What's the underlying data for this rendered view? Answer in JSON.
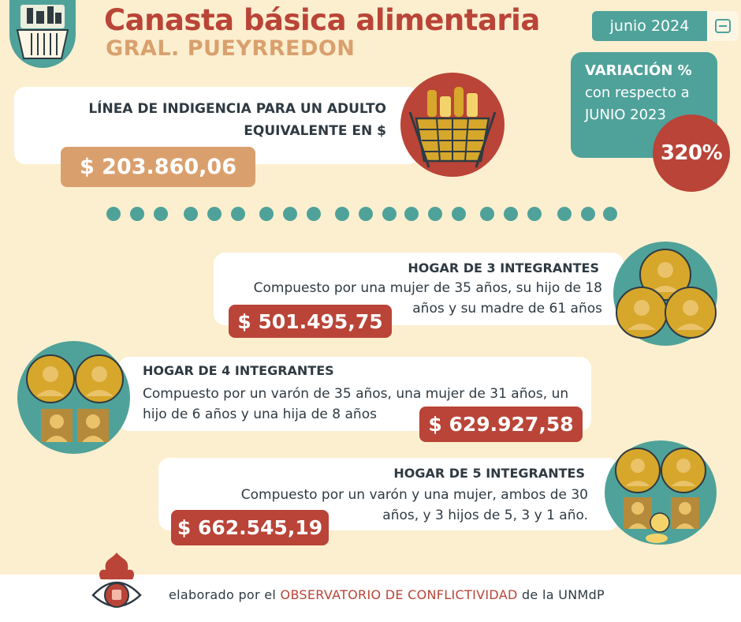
{
  "header": {
    "title": "Canasta básica alimentaria",
    "subtitle": "GRAL. PUEYRREDON",
    "date": "junio 2024"
  },
  "variation": {
    "title": "VARIACIÓN %",
    "text": "con respecto a JUNIO 2023",
    "value": "320%"
  },
  "indigencia": {
    "label": "LÍNEA DE INDIGENCIA PARA UN ADULTO EQUIVALENTE EN $",
    "value": "$ 203.860,06"
  },
  "households": [
    {
      "title": "HOGAR DE  3 INTEGRANTES",
      "description": "Compuesto por una mujer de 35 años, su hijo de 18 años y su madre de 61 años",
      "price": "$ 501.495,75"
    },
    {
      "title": "HOGAR DE  4 INTEGRANTES",
      "description": "Compuesto por un varón de 35 años, una mujer de 31 años, un hijo de 6 años y una hija de 8 años",
      "price": "$ 629.927,58"
    },
    {
      "title": "HOGAR DE  5 INTEGRANTES",
      "description": "Compuesto por un varón y una mujer, ambos de 30 años, y 3 hijos de 5, 3 y 1 año.",
      "price": "$ 662.545,19"
    }
  ],
  "footer": {
    "prefix": "elaborado por el",
    "org": "OBSERVATORIO DE CONFLICTIVIDAD",
    "suffix": "de la UNMdP"
  },
  "colors": {
    "background": "#fcefcf",
    "teal": "#4fa29a",
    "red": "#b94437",
    "tan": "#d9a06e",
    "mustard": "#d6a72a",
    "text": "#2f3a42"
  },
  "icons": [
    "basket-logo-icon",
    "calendar-icon",
    "grocery-basket-icon",
    "family-3-icon",
    "family-4-icon",
    "family-5-icon",
    "fist-eye-logo-icon"
  ]
}
